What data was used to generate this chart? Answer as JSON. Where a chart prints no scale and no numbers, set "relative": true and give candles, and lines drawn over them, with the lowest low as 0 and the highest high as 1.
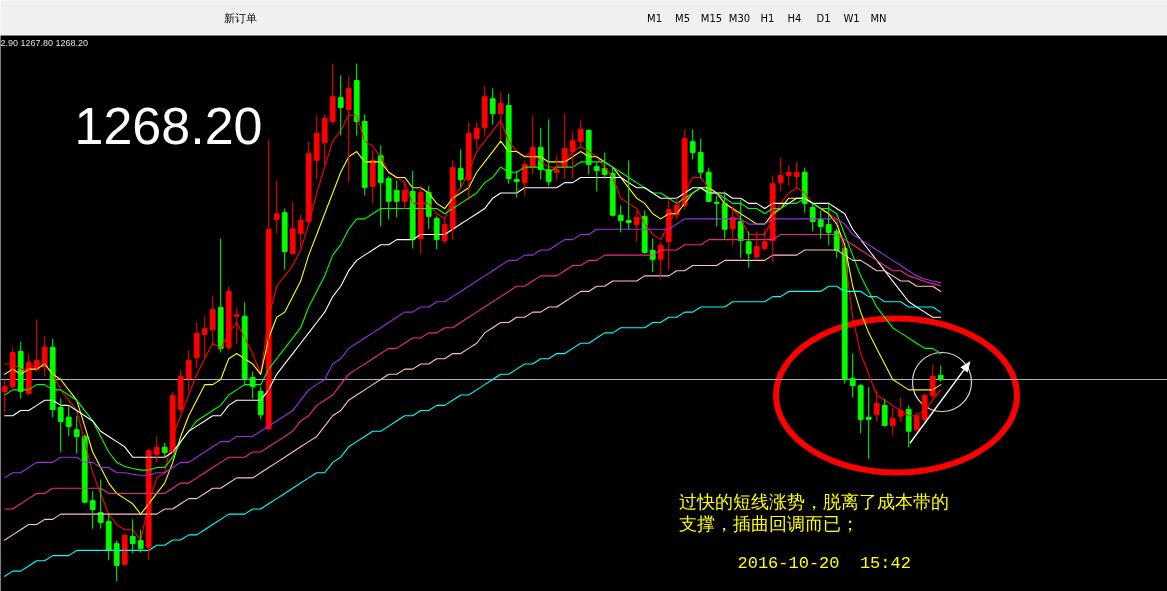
{
  "chart_data": {
    "type": "candlestick",
    "relative": true,
    "tick_labels": false,
    "categories": [
      null,
      null,
      null,
      null,
      null,
      null,
      null,
      null,
      null,
      null,
      null,
      null,
      null,
      null,
      null,
      null,
      null,
      null,
      null,
      null,
      null,
      null,
      null,
      null,
      null,
      null,
      null,
      null,
      null,
      null,
      null,
      null,
      null,
      null,
      null,
      null,
      null,
      null,
      null,
      null,
      null,
      null,
      null,
      null,
      null,
      null,
      null,
      null,
      null,
      null,
      null,
      null,
      null,
      null,
      null,
      null,
      null,
      null,
      null,
      null,
      null,
      null,
      null,
      null,
      null,
      null,
      null,
      null,
      null,
      null,
      null,
      null,
      null,
      null,
      null,
      null,
      null,
      null,
      null,
      null,
      null,
      null,
      null,
      null,
      null,
      null,
      null,
      null,
      null,
      null,
      null,
      null,
      null,
      null,
      null,
      null,
      null,
      null,
      null,
      null,
      null,
      null,
      null,
      null,
      null,
      null,
      null,
      null,
      null,
      null,
      null,
      null,
      null,
      null,
      null,
      null,
      null,
      null
    ],
    "ohlc": [
      [
        0.367,
        0.39,
        0.326,
        0.376
      ],
      [
        0.376,
        0.452,
        0.369,
        0.442
      ],
      [
        0.444,
        0.463,
        0.353,
        0.367
      ],
      [
        0.363,
        0.44,
        0.359,
        0.423
      ],
      [
        0.409,
        0.506,
        0.405,
        0.427
      ],
      [
        0.415,
        0.473,
        0.396,
        0.452
      ],
      [
        0.452,
        0.469,
        0.317,
        0.332
      ],
      [
        0.336,
        0.353,
        0.249,
        0.309
      ],
      [
        0.317,
        0.34,
        0.28,
        0.299
      ],
      [
        0.293,
        0.32,
        0.247,
        0.28
      ],
      [
        0.28,
        0.284,
        0.151,
        0.153
      ],
      [
        0.156,
        0.174,
        0.102,
        0.139
      ],
      [
        0.133,
        0.197,
        0.102,
        0.114
      ],
      [
        0.116,
        0.129,
        0.041,
        0.06
      ],
      [
        0.073,
        0.079,
        0,
        0.031
      ],
      [
        0.033,
        0.093,
        0.031,
        0.089
      ],
      [
        0.087,
        0.12,
        0.054,
        0.073
      ],
      [
        0.079,
        0.1,
        0.056,
        0.064
      ],
      [
        0.066,
        0.257,
        0.041,
        0.253
      ],
      [
        0.245,
        0.28,
        0.23,
        0.259
      ],
      [
        0.259,
        0.268,
        0.239,
        0.249
      ],
      [
        0.249,
        0.367,
        0.247,
        0.359
      ],
      [
        0.332,
        0.409,
        0.326,
        0.396
      ],
      [
        0.392,
        0.446,
        0.367,
        0.427
      ],
      [
        0.432,
        0.5,
        0.413,
        0.479
      ],
      [
        0.477,
        0.512,
        0.432,
        0.488
      ],
      [
        0.486,
        0.552,
        0.459,
        0.525
      ],
      [
        0.529,
        0.662,
        0.442,
        0.45
      ],
      [
        0.452,
        0.569,
        0.446,
        0.56
      ],
      [
        0.512,
        0.529,
        0.459,
        0.515
      ],
      [
        0.512,
        0.539,
        0.378,
        0.392
      ],
      [
        0.394,
        0.405,
        0.353,
        0.376
      ],
      [
        0.367,
        0.376,
        0.313,
        0.322
      ],
      [
        0.295,
        0.853,
        0.29,
        0.68
      ],
      [
        0.699,
        0.774,
        0.672,
        0.71
      ],
      [
        0.712,
        0.72,
        0.602,
        0.637
      ],
      [
        0.633,
        0.732,
        0.631,
        0.681
      ],
      [
        0.672,
        0.708,
        0.645,
        0.697
      ],
      [
        0.695,
        0.849,
        0.689,
        0.826
      ],
      [
        0.813,
        0.9,
        0.776,
        0.865
      ],
      [
        0.847,
        0.902,
        0.805,
        0.894
      ],
      [
        0.888,
        1,
        0.882,
        0.936
      ],
      [
        0.934,
        0.977,
        0.861,
        0.915
      ],
      [
        0.911,
        0.975,
        0.772,
        0.952
      ],
      [
        0.967,
        1,
        0.861,
        0.888
      ],
      [
        0.888,
        0.902,
        0.745,
        0.761
      ],
      [
        0.763,
        0.832,
        0.73,
        0.813
      ],
      [
        0.822,
        0.842,
        0.685,
        0.77
      ],
      [
        0.778,
        0.782,
        0.699,
        0.734
      ],
      [
        0.755,
        0.774,
        0.703,
        0.734
      ],
      [
        0.734,
        0.772,
        0.718,
        0.755
      ],
      [
        0.753,
        0.793,
        0.643,
        0.66
      ],
      [
        0.662,
        0.764,
        0.633,
        0.751
      ],
      [
        0.751,
        0.764,
        0.681,
        0.705
      ],
      [
        0.701,
        0.705,
        0.641,
        0.66
      ],
      [
        0.658,
        0.703,
        0.653,
        0.689
      ],
      [
        0.681,
        0.813,
        0.66,
        0.799
      ],
      [
        0.797,
        0.834,
        0.761,
        0.776
      ],
      [
        0.776,
        0.886,
        0.736,
        0.865
      ],
      [
        0.855,
        0.886,
        0.836,
        0.875
      ],
      [
        0.876,
        0.956,
        0.859,
        0.936
      ],
      [
        0.932,
        0.952,
        0.882,
        0.903
      ],
      [
        0.903,
        0.944,
        0.851,
        0.923
      ],
      [
        0.919,
        0.942,
        0.768,
        0.778
      ],
      [
        0.776,
        0.792,
        0.741,
        0.772
      ],
      [
        0.77,
        0.813,
        0.745,
        0.805
      ],
      [
        0.799,
        0.9,
        0.786,
        0.838
      ],
      [
        0.838,
        0.876,
        0.776,
        0.795
      ],
      [
        0.795,
        0.892,
        0.763,
        0.772
      ],
      [
        0.79,
        0.822,
        0.774,
        0.795
      ],
      [
        0.799,
        0.903,
        0.778,
        0.836
      ],
      [
        0.83,
        0.869,
        0.778,
        0.851
      ],
      [
        0.849,
        0.892,
        0.836,
        0.873
      ],
      [
        0.871,
        0.873,
        0.786,
        0.805
      ],
      [
        0.801,
        0.809,
        0.753,
        0.793
      ],
      [
        0.797,
        0.828,
        0.778,
        0.786
      ],
      [
        0.788,
        0.799,
        0.705,
        0.707
      ],
      [
        0.707,
        0.726,
        0.674,
        0.697
      ],
      [
        0.697,
        0.813,
        0.68,
        0.693
      ],
      [
        0.689,
        0.716,
        0.656,
        0.703
      ],
      [
        0.705,
        0.716,
        0.633,
        0.635
      ],
      [
        0.639,
        0.662,
        0.597,
        0.622
      ],
      [
        0.622,
        0.656,
        0.585,
        0.649
      ],
      [
        0.656,
        0.739,
        0.602,
        0.718
      ],
      [
        0.708,
        0.741,
        0.699,
        0.726
      ],
      [
        0.726,
        0.873,
        0.718,
        0.855
      ],
      [
        0.849,
        0.873,
        0.815,
        0.828
      ],
      [
        0.828,
        0.855,
        0.778,
        0.79
      ],
      [
        0.79,
        0.799,
        0.732,
        0.734
      ],
      [
        0.732,
        0.745,
        0.685,
        0.73
      ],
      [
        0.73,
        0.753,
        0.66,
        0.68
      ],
      [
        0.681,
        0.722,
        0.649,
        0.703
      ],
      [
        0.695,
        0.736,
        0.625,
        0.658
      ],
      [
        0.656,
        0.676,
        0.606,
        0.633
      ],
      [
        0.627,
        0.676,
        0.622,
        0.647
      ],
      [
        0.643,
        0.68,
        0.639,
        0.656
      ],
      [
        0.658,
        0.784,
        0.616,
        0.768
      ],
      [
        0.77,
        0.819,
        0.753,
        0.784
      ],
      [
        0.784,
        0.803,
        0.764,
        0.79
      ],
      [
        0.782,
        0.811,
        0.759,
        0.79
      ],
      [
        0.79,
        0.799,
        0.712,
        0.73
      ],
      [
        0.722,
        0.73,
        0.676,
        0.695
      ],
      [
        0.699,
        0.716,
        0.662,
        0.685
      ],
      [
        0.689,
        0.73,
        0.649,
        0.674
      ],
      [
        0.676,
        0.681,
        0.625,
        0.639
      ],
      [
        0.643,
        0.645,
        0.382,
        0.39
      ],
      [
        0.392,
        0.44,
        0.355,
        0.378
      ],
      [
        0.378,
        0.382,
        0.286,
        0.313
      ],
      [
        0.317,
        0.375,
        0.236,
        0.313
      ],
      [
        0.322,
        0.369,
        0.309,
        0.344
      ],
      [
        0.34,
        0.353,
        0.299,
        0.301
      ],
      [
        0.301,
        0.336,
        0.282,
        0.315
      ],
      [
        0.319,
        0.355,
        0.307,
        0.33
      ],
      [
        0.332,
        0.34,
        0.259,
        0.29
      ],
      [
        0.293,
        0.326,
        0.292,
        0.319
      ],
      [
        0.313,
        0.363,
        0.309,
        0.359
      ],
      [
        0.359,
        0.419,
        0.353,
        0.396
      ],
      [
        0.398,
        0.417,
        0.386,
        0.39
      ]
    ],
    "colors": [
      "#ff0000",
      "#ff0000",
      "#00ff00",
      "#ff0000",
      "#ff0000",
      "#ff0000",
      "#00ff00",
      "#00ff00",
      "#00ff00",
      "#00ff00",
      "#00ff00",
      "#00ff00",
      "#00ff00",
      "#00ff00",
      "#00ff00",
      "#ff0000",
      "#00ff00",
      "#00ff00",
      "#ff0000",
      "#ff0000",
      "#00ff00",
      "#ff0000",
      "#ff0000",
      "#ff0000",
      "#ff0000",
      "#ff0000",
      "#ff0000",
      "#00ff00",
      "#ff0000",
      "#ff0000",
      "#00ff00",
      "#00ff00",
      "#00ff00",
      "#ff0000",
      "#ff0000",
      "#00ff00",
      "#ff0000",
      "#ff0000",
      "#ff0000",
      "#ff0000",
      "#ff0000",
      "#ff0000",
      "#00ff00",
      "#ff0000",
      "#00ff00",
      "#00ff00",
      "#ff0000",
      "#00ff00",
      "#00ff00",
      "#00ff00",
      "#ff0000",
      "#00ff00",
      "#ff0000",
      "#00ff00",
      "#00ff00",
      "#ff0000",
      "#ff0000",
      "#00ff00",
      "#ff0000",
      "#ff0000",
      "#ff0000",
      "#00ff00",
      "#ff0000",
      "#00ff00",
      "#00ff00",
      "#ff0000",
      "#ff0000",
      "#00ff00",
      "#00ff00",
      "#ff0000",
      "#ff0000",
      "#ff0000",
      "#ff0000",
      "#00ff00",
      "#00ff00",
      "#00ff00",
      "#00ff00",
      "#00ff00",
      "#00ff00",
      "#ff0000",
      "#00ff00",
      "#00ff00",
      "#ff0000",
      "#ff0000",
      "#ff0000",
      "#ff0000",
      "#00ff00",
      "#00ff00",
      "#00ff00",
      "#00ff00",
      "#00ff00",
      "#ff0000",
      "#00ff00",
      "#00ff00",
      "#ff0000",
      "#ff0000",
      "#ff0000",
      "#ff0000",
      "#ff0000",
      "#ff0000",
      "#00ff00",
      "#00ff00",
      "#00ff00",
      "#00ff00",
      "#00ff00",
      "#00ff00",
      "#00ff00",
      "#00ff00",
      "#00ff00",
      "#ff0000",
      "#00ff00",
      "#ff0000",
      "#ff0000",
      "#00ff00",
      "#ff0000",
      "#ff0000",
      "#ff0000",
      "#00ff00"
    ],
    "series": [
      {
        "type": "line",
        "color": "#ff0000",
        "values": [
          0.42,
          0.42,
          0.41,
          0.41,
          0.42,
          0.42,
          0.4,
          0.37,
          0.35,
          0.33,
          0.27,
          0.21,
          0.17,
          0.13,
          0.11,
          0.1,
          0.1,
          0.08,
          0.15,
          0.2,
          0.21,
          0.28,
          0.32,
          0.36,
          0.4,
          0.43,
          0.46,
          0.45,
          0.48,
          0.5,
          0.47,
          0.44,
          0.4,
          0.51,
          0.57,
          0.59,
          0.61,
          0.64,
          0.69,
          0.75,
          0.8,
          0.85,
          0.87,
          0.9,
          0.9,
          0.85,
          0.84,
          0.82,
          0.79,
          0.78,
          0.77,
          0.73,
          0.73,
          0.73,
          0.71,
          0.7,
          0.74,
          0.76,
          0.79,
          0.83,
          0.85,
          0.87,
          0.89,
          0.85,
          0.83,
          0.82,
          0.83,
          0.81,
          0.8,
          0.8,
          0.81,
          0.83,
          0.84,
          0.83,
          0.82,
          0.8,
          0.78,
          0.74,
          0.73,
          0.72,
          0.69,
          0.67,
          0.66,
          0.69,
          0.72,
          0.75,
          0.78,
          0.78,
          0.76,
          0.75,
          0.73,
          0.72,
          0.7,
          0.67,
          0.67,
          0.67,
          0.7,
          0.73,
          0.75,
          0.76,
          0.75,
          0.73,
          0.72,
          0.71,
          0.7,
          0.63,
          0.51,
          0.44,
          0.4,
          0.36,
          0.35,
          0.34,
          0.33,
          0.32,
          0.32,
          0.33,
          0.35,
          0.37
        ]
      },
      {
        "type": "line",
        "color": "#ffff00",
        "values": [
          0.4,
          0.41,
          0.4,
          0.41,
          0.41,
          0.42,
          0.4,
          0.39,
          0.37,
          0.35,
          0.3,
          0.25,
          0.22,
          0.19,
          0.17,
          0.16,
          0.15,
          0.13,
          0.15,
          0.17,
          0.19,
          0.23,
          0.28,
          0.32,
          0.35,
          0.38,
          0.38,
          0.39,
          0.43,
          0.44,
          0.43,
          0.42,
          0.4,
          0.47,
          0.51,
          0.52,
          0.55,
          0.58,
          0.63,
          0.67,
          0.71,
          0.75,
          0.79,
          0.82,
          0.83,
          0.81,
          0.81,
          0.81,
          0.79,
          0.78,
          0.78,
          0.76,
          0.76,
          0.75,
          0.73,
          0.72,
          0.74,
          0.75,
          0.76,
          0.79,
          0.81,
          0.83,
          0.85,
          0.83,
          0.83,
          0.82,
          0.82,
          0.82,
          0.81,
          0.81,
          0.81,
          0.82,
          0.83,
          0.82,
          0.82,
          0.81,
          0.8,
          0.78,
          0.76,
          0.74,
          0.73,
          0.71,
          0.7,
          0.71,
          0.71,
          0.73,
          0.75,
          0.76,
          0.76,
          0.75,
          0.73,
          0.72,
          0.71,
          0.7,
          0.69,
          0.69,
          0.71,
          0.72,
          0.74,
          0.74,
          0.74,
          0.73,
          0.72,
          0.71,
          0.69,
          0.65,
          0.57,
          0.52,
          0.48,
          0.45,
          0.42,
          0.39,
          0.38,
          0.37,
          0.37,
          0.37,
          0.37,
          0.38
        ]
      },
      {
        "type": "line",
        "color": "#00ff00",
        "values": [
          0.36,
          0.37,
          0.37,
          0.37,
          0.38,
          0.38,
          0.37,
          0.37,
          0.36,
          0.35,
          0.33,
          0.31,
          0.28,
          0.25,
          0.23,
          0.222,
          0.218,
          0.215,
          0.215,
          0.22,
          0.22,
          0.24,
          0.27,
          0.29,
          0.31,
          0.32,
          0.33,
          0.34,
          0.36,
          0.37,
          0.38,
          0.38,
          0.38,
          0.41,
          0.43,
          0.45,
          0.47,
          0.49,
          0.53,
          0.56,
          0.59,
          0.63,
          0.65,
          0.68,
          0.7,
          0.7,
          0.71,
          0.72,
          0.72,
          0.72,
          0.72,
          0.72,
          0.72,
          0.72,
          0.72,
          0.71,
          0.72,
          0.73,
          0.74,
          0.75,
          0.77,
          0.78,
          0.8,
          0.79,
          0.79,
          0.8,
          0.8,
          0.8,
          0.79,
          0.8,
          0.8,
          0.8,
          0.81,
          0.81,
          0.81,
          0.81,
          0.8,
          0.79,
          0.78,
          0.77,
          0.76,
          0.75,
          0.75,
          0.74,
          0.73,
          0.74,
          0.75,
          0.76,
          0.75,
          0.75,
          0.74,
          0.73,
          0.73,
          0.72,
          0.72,
          0.71,
          0.72,
          0.72,
          0.73,
          0.73,
          0.74,
          0.73,
          0.72,
          0.72,
          0.71,
          0.67,
          0.63,
          0.59,
          0.56,
          0.53,
          0.51,
          0.49,
          0.48,
          0.47,
          0.46,
          0.45,
          0.45,
          0.44
        ]
      },
      {
        "type": "line",
        "color": "#ffffff",
        "values": [
          0.32,
          0.32,
          0.33,
          0.33,
          0.34,
          0.35,
          0.35,
          0.34,
          0.34,
          0.33,
          0.32,
          0.31,
          0.29,
          0.28,
          0.27,
          0.26,
          0.24,
          0.24,
          0.24,
          0.24,
          0.24,
          0.25,
          0.27,
          0.29,
          0.3,
          0.31,
          0.32,
          0.32,
          0.34,
          0.35,
          0.35,
          0.35,
          0.35,
          0.37,
          0.4,
          0.42,
          0.44,
          0.46,
          0.48,
          0.5,
          0.52,
          0.55,
          0.57,
          0.6,
          0.62,
          0.63,
          0.64,
          0.65,
          0.65,
          0.66,
          0.66,
          0.66,
          0.67,
          0.67,
          0.67,
          0.67,
          0.68,
          0.69,
          0.7,
          0.71,
          0.72,
          0.74,
          0.75,
          0.75,
          0.75,
          0.76,
          0.76,
          0.76,
          0.76,
          0.76,
          0.77,
          0.77,
          0.78,
          0.78,
          0.78,
          0.78,
          0.78,
          0.78,
          0.77,
          0.76,
          0.76,
          0.75,
          0.74,
          0.74,
          0.74,
          0.75,
          0.76,
          0.76,
          0.75,
          0.75,
          0.75,
          0.74,
          0.74,
          0.73,
          0.73,
          0.72,
          0.73,
          0.73,
          0.73,
          0.74,
          0.74,
          0.73,
          0.73,
          0.73,
          0.72,
          0.71,
          0.68,
          0.66,
          0.64,
          0.62,
          0.6,
          0.58,
          0.56,
          0.54,
          0.53,
          0.52,
          0.51,
          0.51
        ]
      },
      {
        "type": "line",
        "color": "#9b30e0",
        "values": [
          0.2,
          0.21,
          0.21,
          0.22,
          0.23,
          0.23,
          0.23,
          0.24,
          0.24,
          0.24,
          0.23,
          0.23,
          0.22,
          0.22,
          0.21,
          0.21,
          0.207,
          0.205,
          0.205,
          0.21,
          0.21,
          0.22,
          0.23,
          0.23,
          0.24,
          0.25,
          0.26,
          0.27,
          0.27,
          0.28,
          0.28,
          0.28,
          0.29,
          0.3,
          0.31,
          0.32,
          0.33,
          0.35,
          0.37,
          0.38,
          0.39,
          0.42,
          0.43,
          0.45,
          0.46,
          0.47,
          0.48,
          0.49,
          0.5,
          0.51,
          0.52,
          0.52,
          0.53,
          0.53,
          0.54,
          0.54,
          0.55,
          0.56,
          0.57,
          0.58,
          0.59,
          0.6,
          0.61,
          0.62,
          0.62,
          0.63,
          0.63,
          0.64,
          0.64,
          0.65,
          0.66,
          0.66,
          0.67,
          0.67,
          0.68,
          0.68,
          0.68,
          0.68,
          0.68,
          0.68,
          0.68,
          0.68,
          0.68,
          0.68,
          0.69,
          0.7,
          0.7,
          0.7,
          0.7,
          0.7,
          0.7,
          0.7,
          0.7,
          0.69,
          0.69,
          0.69,
          0.7,
          0.7,
          0.7,
          0.7,
          0.7,
          0.7,
          0.7,
          0.7,
          0.7,
          0.69,
          0.67,
          0.66,
          0.65,
          0.64,
          0.63,
          0.62,
          0.61,
          0.6,
          0.59,
          0.584,
          0.58,
          0.577
        ]
      },
      {
        "type": "line",
        "color": "#f0288c",
        "values": [
          0.14,
          0.14,
          0.15,
          0.16,
          0.17,
          0.17,
          0.18,
          0.18,
          0.18,
          0.18,
          0.18,
          0.18,
          0.18,
          0.17,
          0.17,
          0.17,
          0.17,
          0.17,
          0.17,
          0.17,
          0.17,
          0.18,
          0.19,
          0.19,
          0.2,
          0.21,
          0.22,
          0.23,
          0.24,
          0.24,
          0.24,
          0.25,
          0.25,
          0.26,
          0.27,
          0.28,
          0.29,
          0.31,
          0.32,
          0.34,
          0.35,
          0.36,
          0.38,
          0.4,
          0.41,
          0.42,
          0.43,
          0.44,
          0.45,
          0.45,
          0.46,
          0.47,
          0.47,
          0.48,
          0.48,
          0.49,
          0.49,
          0.5,
          0.51,
          0.52,
          0.53,
          0.54,
          0.55,
          0.56,
          0.57,
          0.57,
          0.58,
          0.59,
          0.59,
          0.59,
          0.6,
          0.61,
          0.61,
          0.62,
          0.62,
          0.63,
          0.63,
          0.63,
          0.63,
          0.63,
          0.63,
          0.63,
          0.64,
          0.64,
          0.64,
          0.65,
          0.65,
          0.65,
          0.66,
          0.66,
          0.66,
          0.66,
          0.66,
          0.66,
          0.66,
          0.66,
          0.66,
          0.67,
          0.67,
          0.67,
          0.67,
          0.67,
          0.67,
          0.67,
          0.67,
          0.66,
          0.65,
          0.64,
          0.63,
          0.62,
          0.61,
          0.6,
          0.6,
          0.59,
          0.585,
          0.579,
          0.575,
          0.571
        ]
      },
      {
        "type": "line",
        "color": "#ffc0cb",
        "values": [
          0.08,
          0.09,
          0.1,
          0.11,
          0.11,
          0.12,
          0.12,
          0.13,
          0.13,
          0.13,
          0.13,
          0.13,
          0.13,
          0.13,
          0.13,
          0.13,
          0.13,
          0.13,
          0.13,
          0.13,
          0.14,
          0.14,
          0.15,
          0.16,
          0.16,
          0.17,
          0.18,
          0.18,
          0.19,
          0.2,
          0.2,
          0.2,
          0.21,
          0.22,
          0.23,
          0.24,
          0.25,
          0.26,
          0.27,
          0.28,
          0.3,
          0.32,
          0.33,
          0.35,
          0.36,
          0.37,
          0.38,
          0.39,
          0.4,
          0.4,
          0.41,
          0.41,
          0.42,
          0.42,
          0.43,
          0.43,
          0.44,
          0.44,
          0.45,
          0.46,
          0.48,
          0.49,
          0.5,
          0.5,
          0.51,
          0.51,
          0.52,
          0.52,
          0.53,
          0.53,
          0.54,
          0.55,
          0.56,
          0.56,
          0.57,
          0.57,
          0.58,
          0.58,
          0.58,
          0.58,
          0.59,
          0.59,
          0.59,
          0.59,
          0.6,
          0.6,
          0.61,
          0.61,
          0.61,
          0.61,
          0.62,
          0.62,
          0.62,
          0.62,
          0.62,
          0.62,
          0.63,
          0.63,
          0.63,
          0.63,
          0.64,
          0.64,
          0.64,
          0.64,
          0.64,
          0.63,
          0.62,
          0.62,
          0.61,
          0.6,
          0.6,
          0.59,
          0.58,
          0.58,
          0.57,
          0.57,
          0.57,
          0.56
        ]
      },
      {
        "type": "line",
        "color": "#00ffff",
        "values": [
          0.01,
          0.02,
          0.02,
          0.03,
          0.04,
          0.04,
          0.05,
          0.05,
          0.05,
          0.06,
          0.06,
          0.06,
          0.06,
          0.06,
          0.06,
          0.06,
          0.06,
          0.06,
          0.06,
          0.07,
          0.07,
          0.08,
          0.08,
          0.09,
          0.09,
          0.1,
          0.11,
          0.12,
          0.13,
          0.13,
          0.13,
          0.14,
          0.14,
          0.15,
          0.16,
          0.17,
          0.18,
          0.19,
          0.2,
          0.21,
          0.21,
          0.23,
          0.24,
          0.26,
          0.27,
          0.28,
          0.29,
          0.29,
          0.3,
          0.31,
          0.32,
          0.32,
          0.33,
          0.33,
          0.34,
          0.34,
          0.35,
          0.36,
          0.36,
          0.37,
          0.38,
          0.39,
          0.4,
          0.4,
          0.41,
          0.42,
          0.42,
          0.43,
          0.43,
          0.44,
          0.44,
          0.45,
          0.46,
          0.46,
          0.47,
          0.48,
          0.48,
          0.49,
          0.49,
          0.49,
          0.49,
          0.5,
          0.5,
          0.51,
          0.51,
          0.52,
          0.52,
          0.53,
          0.53,
          0.53,
          0.53,
          0.54,
          0.54,
          0.54,
          0.54,
          0.54,
          0.55,
          0.55,
          0.56,
          0.56,
          0.56,
          0.56,
          0.56,
          0.57,
          0.57,
          0.56,
          0.56,
          0.56,
          0.55,
          0.55,
          0.54,
          0.54,
          0.54,
          0.53,
          0.53,
          0.53,
          0.53,
          0.52
        ]
      }
    ],
    "ref_lines": [
      {
        "axis": "y",
        "value": 0.39,
        "color": "#a8b8c8"
      }
    ],
    "annotations": [
      "2.90 1267.80 1268.20",
      "1268.20",
      "过快的短线涨势，脱离了成本带的支撑，插曲回调而已；",
      "2016-10-20  15:42",
      "新订单",
      "M1",
      "M5",
      "M15",
      "M30",
      "H1",
      "H4",
      "D1",
      "W1",
      "MN"
    ]
  }
}
